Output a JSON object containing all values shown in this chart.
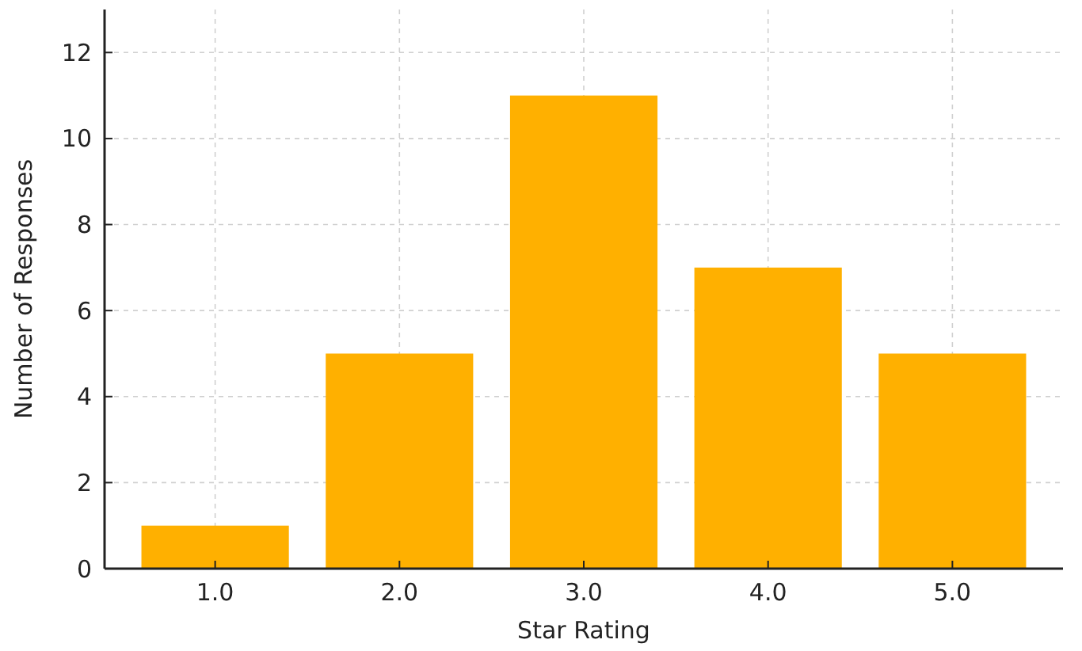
{
  "chart_data": {
    "type": "bar",
    "xlabel": "Star Rating",
    "ylabel": "Number of Responses",
    "categories": [
      "1.0",
      "2.0",
      "3.0",
      "4.0",
      "5.0"
    ],
    "values": [
      1,
      5,
      11,
      7,
      5
    ],
    "color": "#ffb000",
    "ylim": [
      0,
      13
    ],
    "yticks": [
      0,
      2,
      4,
      6,
      8,
      10,
      12
    ],
    "grid": true
  }
}
